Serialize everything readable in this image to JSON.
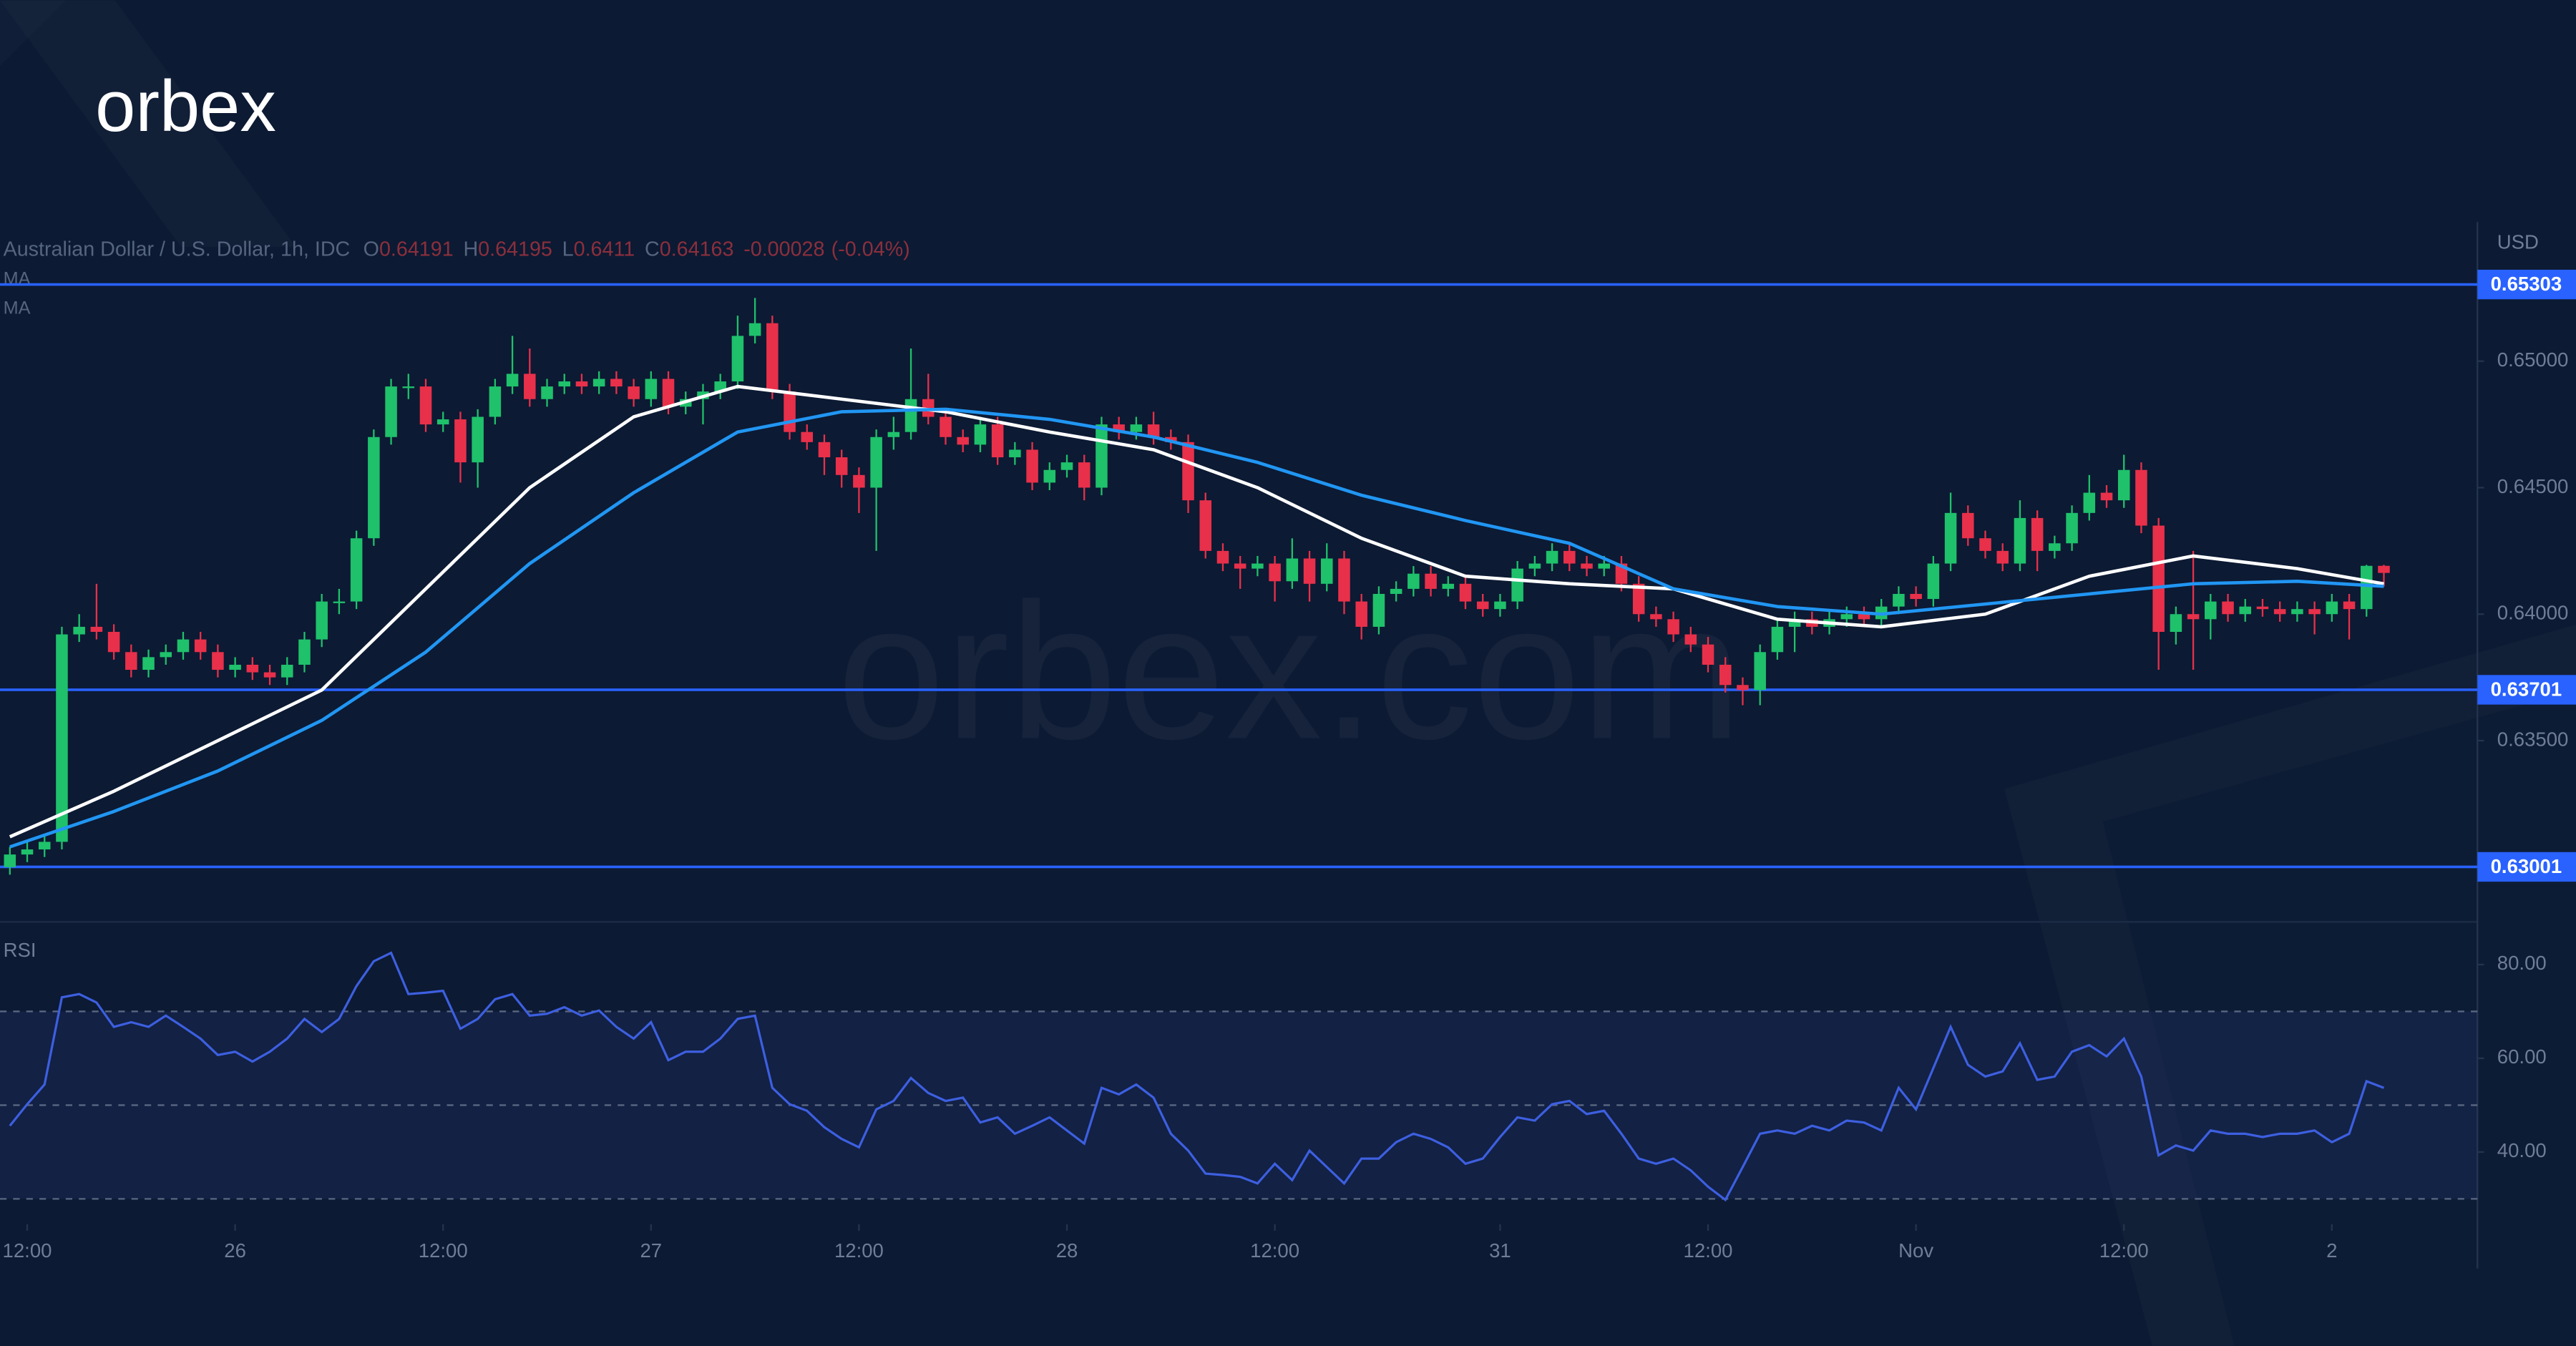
{
  "logo": "orbex",
  "watermark": "orbex.com",
  "chart_data": [
    {
      "type": "candlestick",
      "title": "Australian Dollar / U.S. Dollar, 1h, IDC",
      "ohlc_legend": [
        {
          "key": "O",
          "value": 0.64191
        },
        {
          "key": "H",
          "value": 0.64195
        },
        {
          "key": "L",
          "value": 0.6411
        },
        {
          "key": "C",
          "value": 0.64163
        }
      ],
      "change": -0.00028,
      "change_pct": {
        "value": -0.04,
        "label": "(-0.04%)"
      },
      "unit": "USD",
      "up_color": "#1fc16b",
      "down_color": "#e8304a",
      "candles": [
        [
          0.63,
          0.6308,
          0.6297,
          0.6305
        ],
        [
          0.6305,
          0.631,
          0.6302,
          0.6307
        ],
        [
          0.6307,
          0.6313,
          0.6304,
          0.631
        ],
        [
          0.631,
          0.6395,
          0.6307,
          0.6392
        ],
        [
          0.6392,
          0.64,
          0.6389,
          0.6395
        ],
        [
          0.6395,
          0.6412,
          0.639,
          0.6393
        ],
        [
          0.6393,
          0.6396,
          0.6382,
          0.6385
        ],
        [
          0.6385,
          0.6388,
          0.6375,
          0.6378
        ],
        [
          0.6378,
          0.6386,
          0.6375,
          0.6383
        ],
        [
          0.6383,
          0.6388,
          0.638,
          0.6385
        ],
        [
          0.6385,
          0.6393,
          0.6382,
          0.639
        ],
        [
          0.639,
          0.6393,
          0.6382,
          0.6385
        ],
        [
          0.6385,
          0.6388,
          0.6375,
          0.6378
        ],
        [
          0.6378,
          0.6383,
          0.6375,
          0.638
        ],
        [
          0.638,
          0.6383,
          0.6374,
          0.6377
        ],
        [
          0.6377,
          0.638,
          0.6372,
          0.6375
        ],
        [
          0.6375,
          0.6383,
          0.6372,
          0.638
        ],
        [
          0.638,
          0.6393,
          0.6377,
          0.639
        ],
        [
          0.639,
          0.6408,
          0.6387,
          0.6405
        ],
        [
          0.6405,
          0.641,
          0.64,
          0.6405
        ],
        [
          0.6405,
          0.6433,
          0.6402,
          0.643
        ],
        [
          0.643,
          0.6473,
          0.6427,
          0.647
        ],
        [
          0.647,
          0.6493,
          0.6467,
          0.649
        ],
        [
          0.649,
          0.6495,
          0.6485,
          0.649
        ],
        [
          0.649,
          0.6493,
          0.6472,
          0.6475
        ],
        [
          0.6475,
          0.648,
          0.6472,
          0.6477
        ],
        [
          0.6477,
          0.648,
          0.6452,
          0.646
        ],
        [
          0.646,
          0.6481,
          0.645,
          0.6478
        ],
        [
          0.6478,
          0.6493,
          0.6475,
          0.649
        ],
        [
          0.649,
          0.651,
          0.6487,
          0.6495
        ],
        [
          0.6495,
          0.6505,
          0.6482,
          0.6485
        ],
        [
          0.6485,
          0.6493,
          0.6482,
          0.649
        ],
        [
          0.649,
          0.6495,
          0.6487,
          0.6492
        ],
        [
          0.6492,
          0.6495,
          0.6487,
          0.649
        ],
        [
          0.649,
          0.6496,
          0.6487,
          0.6493
        ],
        [
          0.6493,
          0.6496,
          0.6487,
          0.649
        ],
        [
          0.649,
          0.6493,
          0.6482,
          0.6485
        ],
        [
          0.6485,
          0.6496,
          0.6482,
          0.6493
        ],
        [
          0.6493,
          0.6496,
          0.6479,
          0.6482
        ],
        [
          0.6482,
          0.6488,
          0.6479,
          0.6485
        ],
        [
          0.6485,
          0.6491,
          0.6475,
          0.6488
        ],
        [
          0.6488,
          0.6495,
          0.6485,
          0.6492
        ],
        [
          0.6492,
          0.6518,
          0.6489,
          0.651
        ],
        [
          0.651,
          0.6525,
          0.6507,
          0.6515
        ],
        [
          0.6515,
          0.6518,
          0.6485,
          0.6488
        ],
        [
          0.6488,
          0.6491,
          0.6469,
          0.6472
        ],
        [
          0.6472,
          0.6475,
          0.6465,
          0.6468
        ],
        [
          0.6468,
          0.6471,
          0.6455,
          0.6462
        ],
        [
          0.6462,
          0.6465,
          0.645,
          0.6455
        ],
        [
          0.6455,
          0.6458,
          0.644,
          0.645
        ],
        [
          0.645,
          0.6473,
          0.6425,
          0.647
        ],
        [
          0.647,
          0.6478,
          0.6465,
          0.6472
        ],
        [
          0.6472,
          0.6505,
          0.6469,
          0.6485
        ],
        [
          0.6485,
          0.6495,
          0.6475,
          0.6478
        ],
        [
          0.6478,
          0.6481,
          0.6467,
          0.647
        ],
        [
          0.647,
          0.6473,
          0.6464,
          0.6467
        ],
        [
          0.6467,
          0.6478,
          0.6464,
          0.6475
        ],
        [
          0.6475,
          0.6478,
          0.6459,
          0.6462
        ],
        [
          0.6462,
          0.6468,
          0.6459,
          0.6465
        ],
        [
          0.6465,
          0.6468,
          0.6449,
          0.6452
        ],
        [
          0.6452,
          0.646,
          0.6449,
          0.6457
        ],
        [
          0.6457,
          0.6463,
          0.6454,
          0.646
        ],
        [
          0.646,
          0.6463,
          0.6445,
          0.645
        ],
        [
          0.645,
          0.6478,
          0.6447,
          0.6475
        ],
        [
          0.6475,
          0.6478,
          0.6469,
          0.6472
        ],
        [
          0.6472,
          0.6478,
          0.6469,
          0.6475
        ],
        [
          0.6475,
          0.648,
          0.6467,
          0.647
        ],
        [
          0.647,
          0.6473,
          0.6465,
          0.6468
        ],
        [
          0.6468,
          0.6471,
          0.644,
          0.6445
        ],
        [
          0.6445,
          0.6448,
          0.6422,
          0.6425
        ],
        [
          0.6425,
          0.6428,
          0.6417,
          0.642
        ],
        [
          0.642,
          0.6423,
          0.641,
          0.6418
        ],
        [
          0.6418,
          0.6423,
          0.6415,
          0.642
        ],
        [
          0.642,
          0.6423,
          0.6405,
          0.6413
        ],
        [
          0.6413,
          0.643,
          0.641,
          0.6422
        ],
        [
          0.6422,
          0.6425,
          0.6405,
          0.6412
        ],
        [
          0.6412,
          0.6428,
          0.6409,
          0.6422
        ],
        [
          0.6422,
          0.6425,
          0.64,
          0.6405
        ],
        [
          0.6405,
          0.6408,
          0.639,
          0.6395
        ],
        [
          0.6395,
          0.6411,
          0.6392,
          0.6408
        ],
        [
          0.6408,
          0.6413,
          0.6405,
          0.641
        ],
        [
          0.641,
          0.6419,
          0.6407,
          0.6416
        ],
        [
          0.6416,
          0.6419,
          0.6407,
          0.641
        ],
        [
          0.641,
          0.6415,
          0.6407,
          0.6412
        ],
        [
          0.6412,
          0.6415,
          0.6402,
          0.6405
        ],
        [
          0.6405,
          0.6408,
          0.6399,
          0.6402
        ],
        [
          0.6402,
          0.6408,
          0.6399,
          0.6405
        ],
        [
          0.6405,
          0.6421,
          0.6402,
          0.6418
        ],
        [
          0.6418,
          0.6423,
          0.6415,
          0.642
        ],
        [
          0.642,
          0.6428,
          0.6417,
          0.6425
        ],
        [
          0.6425,
          0.6428,
          0.6417,
          0.642
        ],
        [
          0.642,
          0.6423,
          0.6415,
          0.6418
        ],
        [
          0.6418,
          0.6423,
          0.6415,
          0.642
        ],
        [
          0.642,
          0.6423,
          0.6409,
          0.6412
        ],
        [
          0.6412,
          0.6415,
          0.6397,
          0.64
        ],
        [
          0.64,
          0.6403,
          0.6395,
          0.6398
        ],
        [
          0.6398,
          0.6401,
          0.6389,
          0.6392
        ],
        [
          0.6392,
          0.6395,
          0.6385,
          0.6388
        ],
        [
          0.6388,
          0.6391,
          0.6377,
          0.638
        ],
        [
          0.638,
          0.6383,
          0.6369,
          0.6372
        ],
        [
          0.6372,
          0.6375,
          0.6364,
          0.637
        ],
        [
          0.637,
          0.6388,
          0.6364,
          0.6385
        ],
        [
          0.6385,
          0.6398,
          0.6382,
          0.6395
        ],
        [
          0.6395,
          0.6401,
          0.6385,
          0.6398
        ],
        [
          0.6398,
          0.6401,
          0.6392,
          0.6395
        ],
        [
          0.6395,
          0.6401,
          0.6392,
          0.6398
        ],
        [
          0.6398,
          0.6403,
          0.6395,
          0.64
        ],
        [
          0.64,
          0.6403,
          0.6395,
          0.6398
        ],
        [
          0.6398,
          0.6406,
          0.6395,
          0.6403
        ],
        [
          0.6403,
          0.6411,
          0.64,
          0.6408
        ],
        [
          0.6408,
          0.6411,
          0.6403,
          0.6406
        ],
        [
          0.6406,
          0.6423,
          0.6403,
          0.642
        ],
        [
          0.642,
          0.6448,
          0.6417,
          0.644
        ],
        [
          0.644,
          0.6443,
          0.6427,
          0.643
        ],
        [
          0.643,
          0.6433,
          0.6422,
          0.6425
        ],
        [
          0.6425,
          0.6428,
          0.6417,
          0.642
        ],
        [
          0.642,
          0.6445,
          0.6417,
          0.6438
        ],
        [
          0.6438,
          0.6441,
          0.6417,
          0.6425
        ],
        [
          0.6425,
          0.6431,
          0.6422,
          0.6428
        ],
        [
          0.6428,
          0.6443,
          0.6425,
          0.644
        ],
        [
          0.644,
          0.6455,
          0.6437,
          0.6448
        ],
        [
          0.6448,
          0.6451,
          0.6442,
          0.6445
        ],
        [
          0.6445,
          0.6463,
          0.6442,
          0.6457
        ],
        [
          0.6457,
          0.646,
          0.6432,
          0.6435
        ],
        [
          0.6435,
          0.6438,
          0.6378,
          0.6393
        ],
        [
          0.6393,
          0.6403,
          0.6388,
          0.64
        ],
        [
          0.64,
          0.6425,
          0.6378,
          0.6398
        ],
        [
          0.6398,
          0.6408,
          0.639,
          0.6405
        ],
        [
          0.6405,
          0.6408,
          0.6397,
          0.64
        ],
        [
          0.64,
          0.6406,
          0.6397,
          0.6403
        ],
        [
          0.6403,
          0.6406,
          0.6399,
          0.6402
        ],
        [
          0.6402,
          0.6405,
          0.6397,
          0.64
        ],
        [
          0.64,
          0.6405,
          0.6397,
          0.6402
        ],
        [
          0.6402,
          0.6405,
          0.6392,
          0.64
        ],
        [
          0.64,
          0.6408,
          0.6397,
          0.6405
        ],
        [
          0.6405,
          0.6408,
          0.639,
          0.6402
        ],
        [
          0.6402,
          0.64195,
          0.6399,
          0.64191
        ],
        [
          0.64191,
          0.64195,
          0.6411,
          0.64163
        ]
      ],
      "series": [
        {
          "name": "MA",
          "color": "#ffffff",
          "x": [
            0,
            6,
            12,
            18,
            24,
            30,
            36,
            42,
            48,
            54,
            60,
            66,
            72,
            78,
            84,
            90,
            96,
            102,
            108,
            114,
            120,
            126,
            132,
            137
          ],
          "values": [
            0.6312,
            0.633,
            0.635,
            0.637,
            0.641,
            0.645,
            0.6478,
            0.649,
            0.6485,
            0.648,
            0.6472,
            0.6465,
            0.645,
            0.643,
            0.6415,
            0.6412,
            0.641,
            0.6398,
            0.6395,
            0.64,
            0.6415,
            0.6423,
            0.6418,
            0.6412
          ]
        },
        {
          "name": "MA",
          "color": "#2196f3",
          "x": [
            0,
            6,
            12,
            18,
            24,
            30,
            36,
            42,
            48,
            54,
            60,
            66,
            72,
            78,
            84,
            90,
            96,
            102,
            108,
            114,
            120,
            126,
            132,
            137
          ],
          "values": [
            0.6308,
            0.6322,
            0.6338,
            0.6358,
            0.6385,
            0.642,
            0.6448,
            0.6472,
            0.648,
            0.6481,
            0.6477,
            0.647,
            0.646,
            0.6447,
            0.6437,
            0.6428,
            0.641,
            0.6403,
            0.64,
            0.6404,
            0.6408,
            0.6412,
            0.6413,
            0.6411
          ]
        }
      ],
      "levels": [
        0.65303,
        0.63701,
        0.63001
      ],
      "level_color": "#2962ff",
      "xlim": [
        -0.57,
        142.4
      ],
      "ylim": [
        0.6279,
        0.6555
      ],
      "yticks": [
        {
          "value": 0.65,
          "label": "0.65000"
        },
        {
          "value": 0.645,
          "label": "0.64500"
        },
        {
          "value": 0.64,
          "label": "0.64000"
        },
        {
          "value": 0.635,
          "label": "0.63500"
        }
      ]
    },
    {
      "type": "line",
      "title": "RSI",
      "color": "#3d5fe0",
      "values": [
        45.6,
        50.2,
        54.4,
        73.0,
        73.7,
        71.9,
        66.7,
        67.7,
        66.7,
        69.1,
        66.7,
        64.2,
        60.7,
        61.4,
        59.3,
        61.4,
        64.2,
        68.4,
        65.6,
        68.4,
        75.4,
        80.7,
        82.5,
        73.7,
        74.0,
        74.4,
        66.3,
        68.4,
        72.6,
        73.7,
        69.1,
        69.5,
        70.9,
        69.1,
        70.2,
        66.7,
        64.2,
        67.7,
        59.6,
        61.4,
        61.4,
        64.2,
        68.4,
        69.1,
        53.7,
        50.2,
        48.8,
        45.3,
        42.8,
        41.0,
        49.1,
        50.9,
        55.8,
        52.6,
        50.9,
        51.6,
        46.3,
        47.4,
        43.9,
        45.6,
        47.4,
        44.6,
        41.8,
        53.7,
        52.3,
        54.4,
        51.6,
        43.9,
        40.3,
        35.4,
        35.1,
        34.7,
        33.3,
        37.5,
        34.0,
        40.3,
        36.8,
        33.3,
        38.6,
        38.6,
        42.1,
        43.9,
        42.8,
        41.0,
        37.5,
        38.6,
        43.2,
        47.4,
        46.7,
        50.2,
        50.9,
        48.1,
        48.8,
        43.9,
        38.6,
        37.5,
        38.6,
        36.1,
        32.6,
        29.8,
        36.8,
        43.9,
        44.6,
        43.9,
        45.6,
        44.6,
        46.7,
        46.3,
        44.6,
        53.7,
        49.1,
        57.9,
        66.7,
        58.6,
        56.1,
        57.2,
        63.2,
        55.4,
        56.1,
        61.4,
        62.8,
        60.4,
        64.2,
        56.1,
        39.3,
        41.4,
        40.3,
        44.6,
        43.9,
        43.9,
        43.2,
        43.9,
        43.9,
        44.6,
        42.1,
        43.9,
        55.1,
        53.7
      ],
      "guides": [
        70,
        50,
        30
      ],
      "band": [
        30,
        70
      ],
      "xlim": [
        -0.57,
        142.4
      ],
      "ylim": [
        24.6,
        88.4
      ],
      "yticks": [
        {
          "value": 80,
          "label": "80.00"
        },
        {
          "value": 60,
          "label": "60.00"
        },
        {
          "value": 40,
          "label": "40.00"
        }
      ],
      "xticks": [
        {
          "value": 1,
          "label": "12:00"
        },
        {
          "value": 13,
          "label": "26"
        },
        {
          "value": 25,
          "label": "12:00"
        },
        {
          "value": 37,
          "label": "27"
        },
        {
          "value": 49,
          "label": "12:00"
        },
        {
          "value": 61,
          "label": "28"
        },
        {
          "value": 73,
          "label": "12:00"
        },
        {
          "value": 86,
          "label": "31"
        },
        {
          "value": 98,
          "label": "12:00"
        },
        {
          "value": 110,
          "label": "Nov"
        },
        {
          "value": 122,
          "label": "12:00"
        },
        {
          "value": 134,
          "label": "2"
        }
      ]
    }
  ]
}
